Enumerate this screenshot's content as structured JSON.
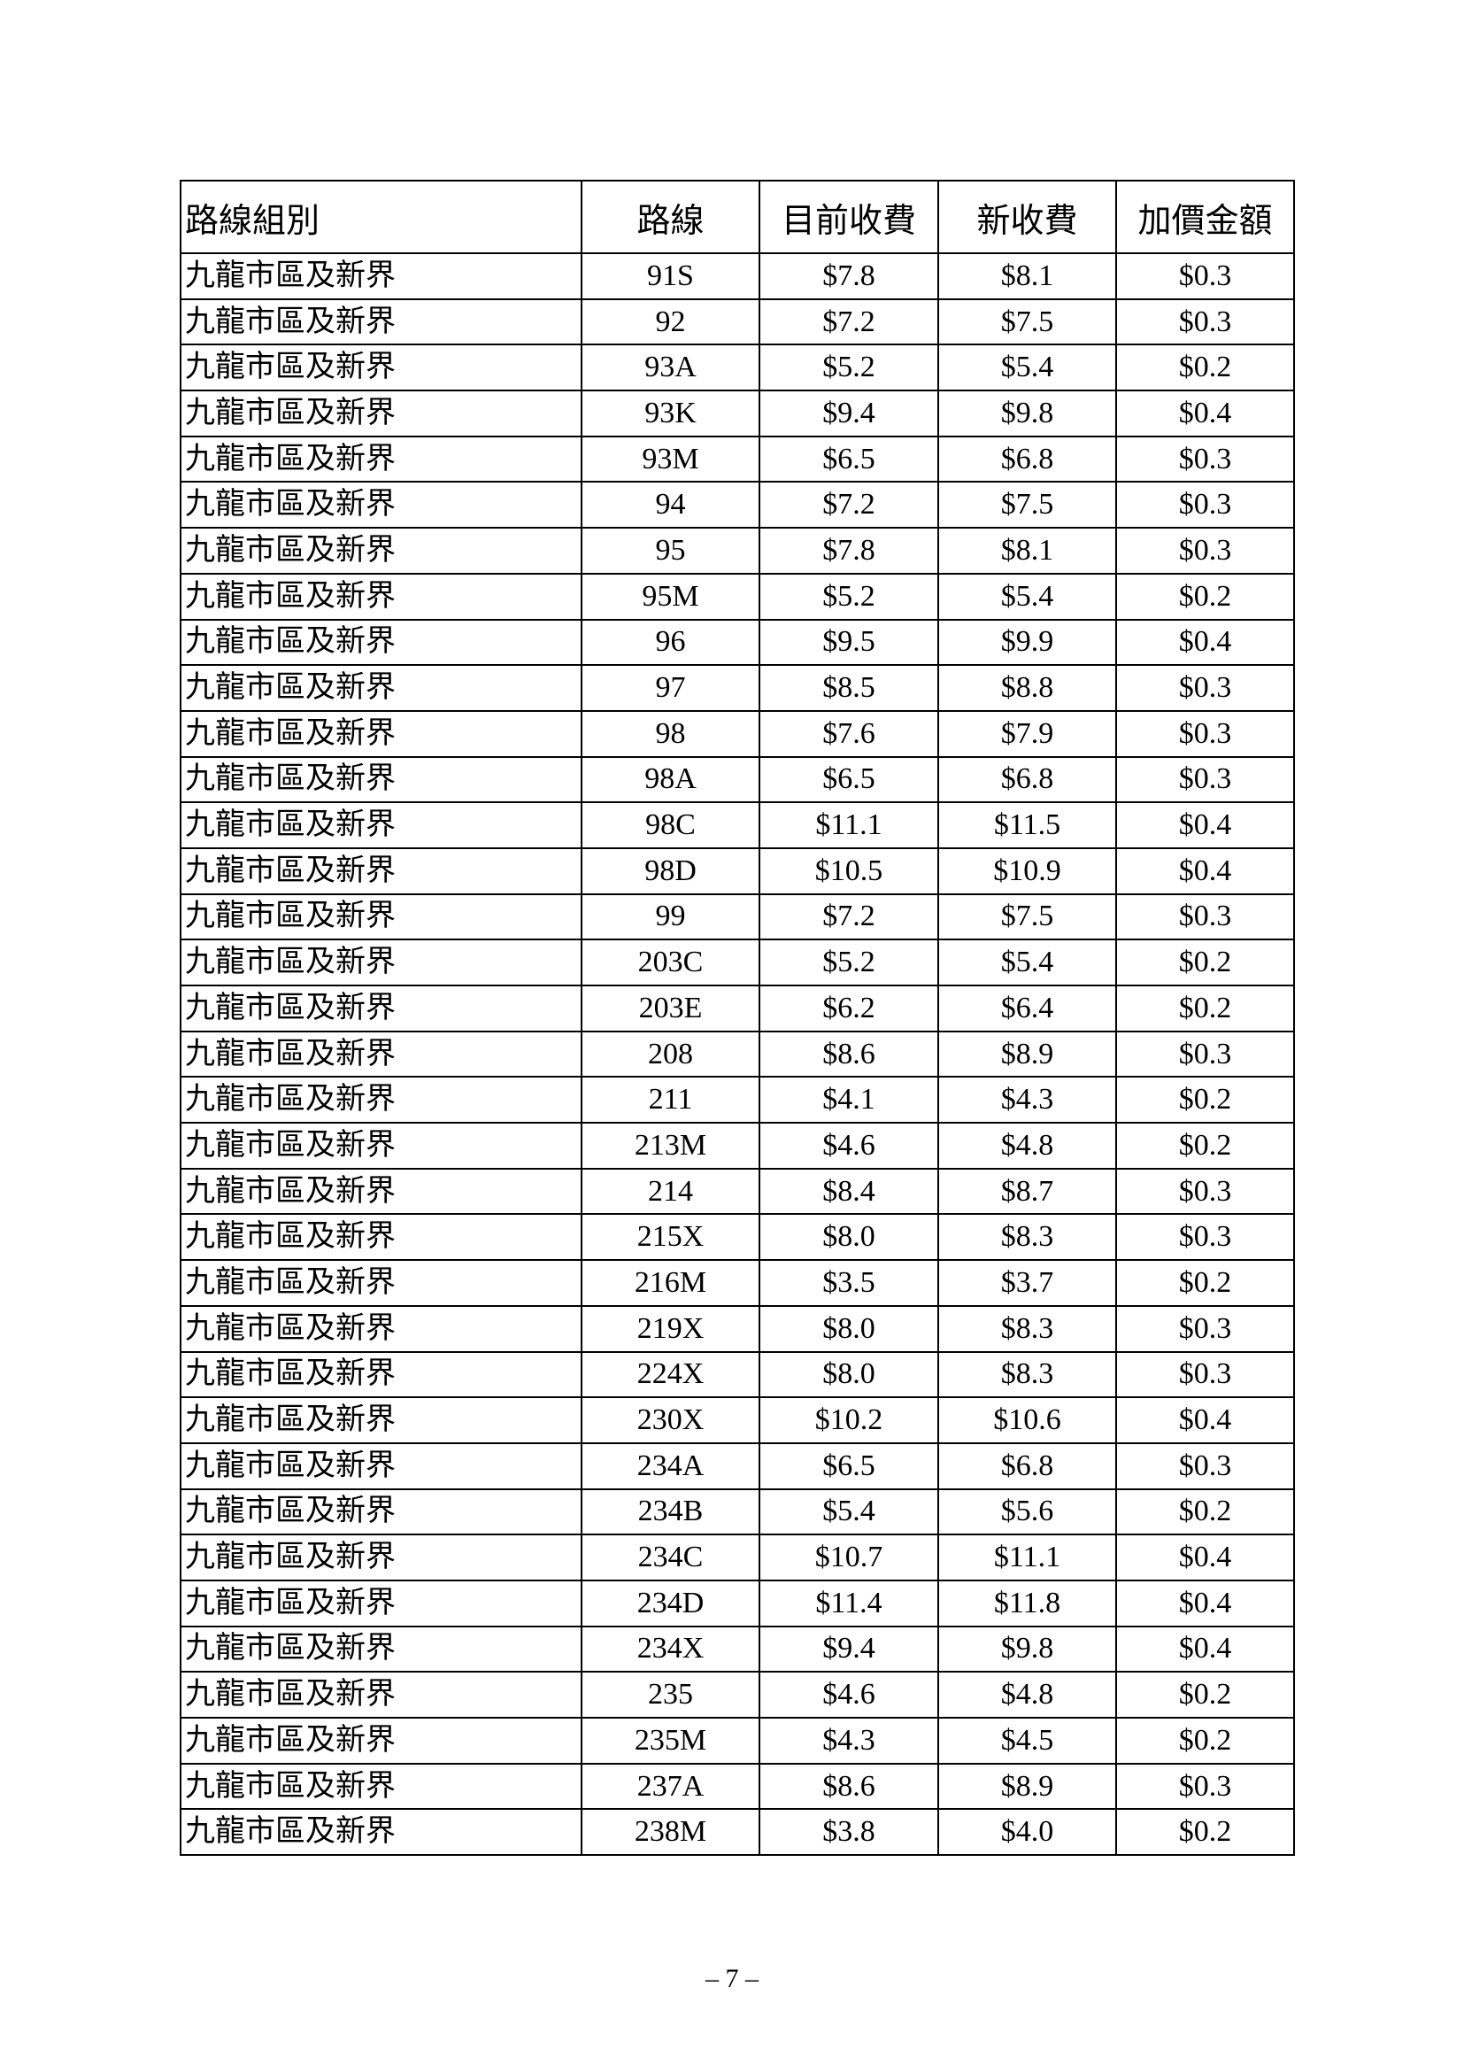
{
  "table": {
    "headers": [
      "路線組別",
      "路線",
      "目前收費",
      "新收費",
      "加價金額"
    ],
    "rows": [
      [
        "九龍市區及新界",
        "91S",
        "$7.8",
        "$8.1",
        "$0.3"
      ],
      [
        "九龍市區及新界",
        "92",
        "$7.2",
        "$7.5",
        "$0.3"
      ],
      [
        "九龍市區及新界",
        "93A",
        "$5.2",
        "$5.4",
        "$0.2"
      ],
      [
        "九龍市區及新界",
        "93K",
        "$9.4",
        "$9.8",
        "$0.4"
      ],
      [
        "九龍市區及新界",
        "93M",
        "$6.5",
        "$6.8",
        "$0.3"
      ],
      [
        "九龍市區及新界",
        "94",
        "$7.2",
        "$7.5",
        "$0.3"
      ],
      [
        "九龍市區及新界",
        "95",
        "$7.8",
        "$8.1",
        "$0.3"
      ],
      [
        "九龍市區及新界",
        "95M",
        "$5.2",
        "$5.4",
        "$0.2"
      ],
      [
        "九龍市區及新界",
        "96",
        "$9.5",
        "$9.9",
        "$0.4"
      ],
      [
        "九龍市區及新界",
        "97",
        "$8.5",
        "$8.8",
        "$0.3"
      ],
      [
        "九龍市區及新界",
        "98",
        "$7.6",
        "$7.9",
        "$0.3"
      ],
      [
        "九龍市區及新界",
        "98A",
        "$6.5",
        "$6.8",
        "$0.3"
      ],
      [
        "九龍市區及新界",
        "98C",
        "$11.1",
        "$11.5",
        "$0.4"
      ],
      [
        "九龍市區及新界",
        "98D",
        "$10.5",
        "$10.9",
        "$0.4"
      ],
      [
        "九龍市區及新界",
        "99",
        "$7.2",
        "$7.5",
        "$0.3"
      ],
      [
        "九龍市區及新界",
        "203C",
        "$5.2",
        "$5.4",
        "$0.2"
      ],
      [
        "九龍市區及新界",
        "203E",
        "$6.2",
        "$6.4",
        "$0.2"
      ],
      [
        "九龍市區及新界",
        "208",
        "$8.6",
        "$8.9",
        "$0.3"
      ],
      [
        "九龍市區及新界",
        "211",
        "$4.1",
        "$4.3",
        "$0.2"
      ],
      [
        "九龍市區及新界",
        "213M",
        "$4.6",
        "$4.8",
        "$0.2"
      ],
      [
        "九龍市區及新界",
        "214",
        "$8.4",
        "$8.7",
        "$0.3"
      ],
      [
        "九龍市區及新界",
        "215X",
        "$8.0",
        "$8.3",
        "$0.3"
      ],
      [
        "九龍市區及新界",
        "216M",
        "$3.5",
        "$3.7",
        "$0.2"
      ],
      [
        "九龍市區及新界",
        "219X",
        "$8.0",
        "$8.3",
        "$0.3"
      ],
      [
        "九龍市區及新界",
        "224X",
        "$8.0",
        "$8.3",
        "$0.3"
      ],
      [
        "九龍市區及新界",
        "230X",
        "$10.2",
        "$10.6",
        "$0.4"
      ],
      [
        "九龍市區及新界",
        "234A",
        "$6.5",
        "$6.8",
        "$0.3"
      ],
      [
        "九龍市區及新界",
        "234B",
        "$5.4",
        "$5.6",
        "$0.2"
      ],
      [
        "九龍市區及新界",
        "234C",
        "$10.7",
        "$11.1",
        "$0.4"
      ],
      [
        "九龍市區及新界",
        "234D",
        "$11.4",
        "$11.8",
        "$0.4"
      ],
      [
        "九龍市區及新界",
        "234X",
        "$9.4",
        "$9.8",
        "$0.4"
      ],
      [
        "九龍市區及新界",
        "235",
        "$4.6",
        "$4.8",
        "$0.2"
      ],
      [
        "九龍市區及新界",
        "235M",
        "$4.3",
        "$4.5",
        "$0.2"
      ],
      [
        "九龍市區及新界",
        "237A",
        "$8.6",
        "$8.9",
        "$0.3"
      ],
      [
        "九龍市區及新界",
        "238M",
        "$3.8",
        "$4.0",
        "$0.2"
      ]
    ]
  },
  "page_number": "– 7 –"
}
